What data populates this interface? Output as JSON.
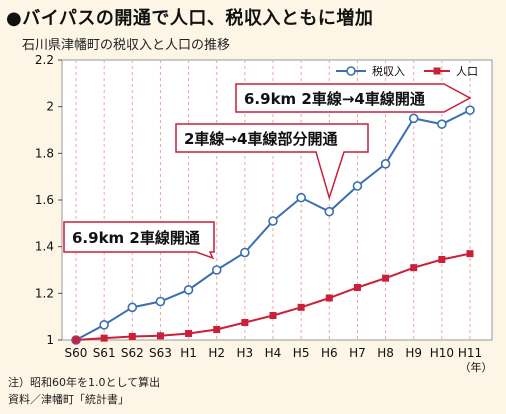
{
  "header": {
    "title": "●バイパスの開通で人口、税収入ともに増加",
    "subtitle": "石川県津幡町の税収入と人口の推移"
  },
  "notes": {
    "line1": "注）昭和60年を1.0として算出",
    "line2": "資料／津幡町「統計書」"
  },
  "colors": {
    "background": "#fdf5e6",
    "plot_background": "#ffffff",
    "grid": "#e6a8a8",
    "tax_series": "#3a6fb0",
    "population_series": "#cc1f3a",
    "callout_fill": "#ffffff",
    "callout_arrow": "#cc1f3a"
  },
  "chart_data": {
    "type": "line",
    "categories": [
      "S60",
      "S61",
      "S62",
      "S63",
      "H1",
      "H2",
      "H3",
      "H4",
      "H5",
      "H6",
      "H7",
      "H8",
      "H9",
      "H10",
      "H11"
    ],
    "x_unit_label": "（年）",
    "series": [
      {
        "name": "税収入",
        "marker": "circle-open",
        "values": [
          1.0,
          1.065,
          1.14,
          1.165,
          1.215,
          1.3,
          1.375,
          1.51,
          1.61,
          1.55,
          1.66,
          1.755,
          1.95,
          1.925,
          1.985
        ]
      },
      {
        "name": "人口",
        "marker": "square-filled",
        "values": [
          1.0,
          1.008,
          1.015,
          1.018,
          1.028,
          1.045,
          1.075,
          1.105,
          1.14,
          1.18,
          1.225,
          1.265,
          1.31,
          1.345,
          1.37
        ]
      }
    ],
    "ylim": [
      1,
      2.2
    ],
    "yticks": [
      "1",
      "1.2",
      "1.4",
      "1.6",
      "1.8",
      "2",
      "2.2"
    ],
    "grid": "vertical-dashed",
    "legend_position": "top-right",
    "annotations": [
      {
        "text": "6.9km 2車線開通",
        "at": "H2"
      },
      {
        "text": "2車線→4車線部分開通",
        "at": "H6"
      },
      {
        "text": "6.9km 2車線→4車線開通",
        "at": "H11"
      }
    ]
  }
}
